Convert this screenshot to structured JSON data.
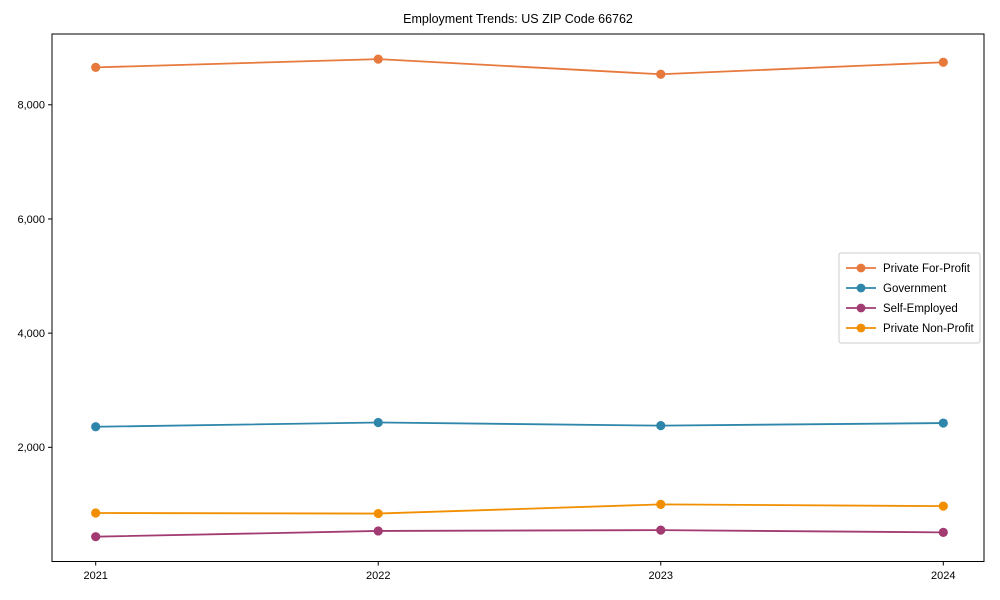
{
  "title": "Employment Trends: US ZIP Code 66762",
  "chart_data": {
    "type": "line",
    "title": "Employment Trends: US ZIP Code 66762",
    "xlabel": "",
    "ylabel": "",
    "x": [
      "2021",
      "2022",
      "2023",
      "2024"
    ],
    "series": [
      {
        "name": "Private For-Profit",
        "color": "#E8793D",
        "values": [
          8655,
          8800,
          8535,
          8745
        ]
      },
      {
        "name": "Government",
        "color": "#2E86AB",
        "values": [
          2360,
          2435,
          2380,
          2425
        ]
      },
      {
        "name": "Self-Employed",
        "color": "#A23B72",
        "values": [
          435,
          535,
          550,
          510
        ]
      },
      {
        "name": "Private Non-Profit",
        "color": "#F18F01",
        "values": [
          850,
          840,
          1000,
          970
        ]
      }
    ],
    "ylim": [
      0,
      9240
    ],
    "yticks": [
      2000,
      4000,
      6000,
      8000
    ],
    "ytick_labels": [
      "2,000",
      "4,000",
      "6,000",
      "8,000"
    ],
    "grid": false,
    "legend_position": "center-right",
    "marker": "circle",
    "frame": true,
    "colors": {
      "spine": "#000000",
      "background": "#ffffff",
      "legend_border": "#cccccc"
    }
  }
}
